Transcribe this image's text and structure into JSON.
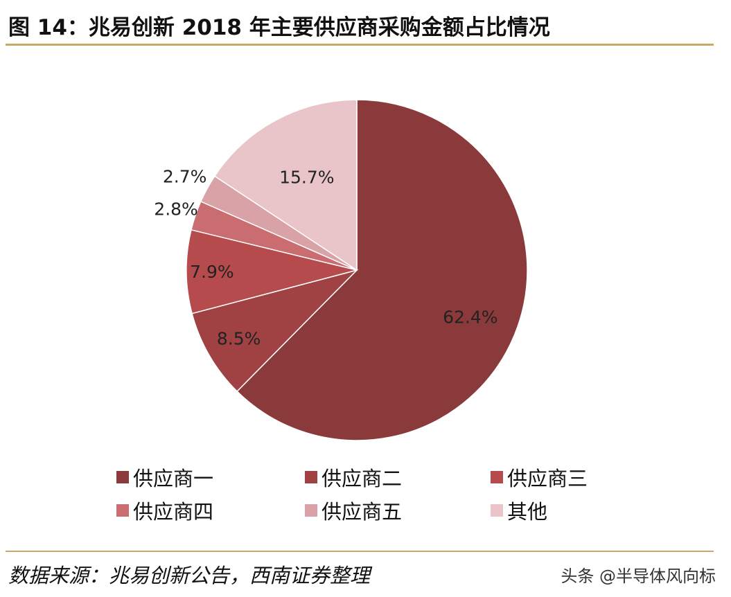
{
  "title": "图 14：兆易创新 2018 年主要供应商采购金额占比情况",
  "chart_data": {
    "type": "pie",
    "title": "图 14：兆易创新 2018 年主要供应商采购金额占比情况",
    "categories": [
      "供应商一",
      "供应商二",
      "供应商三",
      "供应商四",
      "供应商五",
      "其他"
    ],
    "values": [
      62.4,
      8.5,
      7.9,
      2.8,
      2.7,
      15.7
    ],
    "labels": [
      "62.4%",
      "8.5%",
      "7.9%",
      "2.8%",
      "2.7%",
      "15.7%"
    ],
    "colors": [
      "#8b3a3b",
      "#a04243",
      "#b54b4d",
      "#c96d70",
      "#d9a2a6",
      "#e9c5c9"
    ],
    "start": "top",
    "direction": "clockwise",
    "legend_position": "bottom"
  },
  "source": "数据来源：兆易创新公告，西南证券整理",
  "watermark": "头条 @半导体风向标"
}
